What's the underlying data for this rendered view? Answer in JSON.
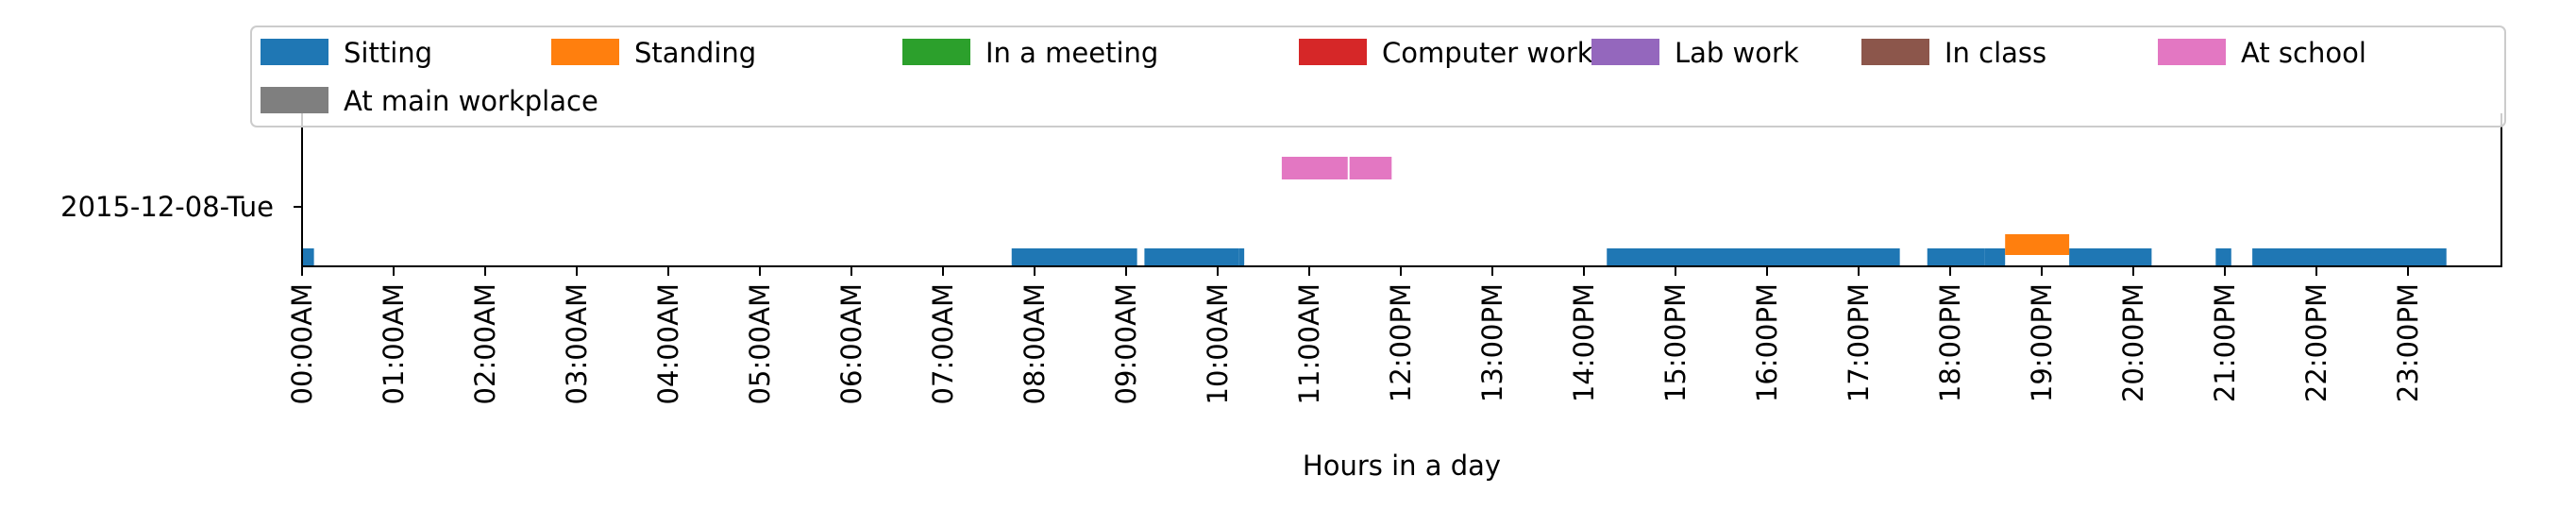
{
  "chart_data": {
    "type": "timeline",
    "title": "",
    "xlabel": "Hours in a day",
    "ylabel": "",
    "xlim": [
      0,
      24
    ],
    "row_label": "2015-12-08-Tue",
    "xticks": [
      0,
      1,
      2,
      3,
      4,
      5,
      6,
      7,
      8,
      9,
      10,
      11,
      12,
      13,
      14,
      15,
      16,
      17,
      18,
      19,
      20,
      21,
      22,
      23
    ],
    "xtick_labels": [
      "00:00AM",
      "01:00AM",
      "02:00AM",
      "03:00AM",
      "04:00AM",
      "05:00AM",
      "06:00AM",
      "07:00AM",
      "08:00AM",
      "09:00AM",
      "10:00AM",
      "11:00AM",
      "12:00PM",
      "13:00PM",
      "14:00PM",
      "15:00PM",
      "16:00PM",
      "17:00PM",
      "18:00PM",
      "19:00PM",
      "20:00PM",
      "21:00PM",
      "22:00PM",
      "23:00PM"
    ],
    "legend_position": "top",
    "series": [
      {
        "name": "Sitting",
        "color": "#1f77b4",
        "intervals": [
          [
            0.0,
            0.13
          ],
          [
            7.75,
            9.12
          ],
          [
            9.2,
            10.23
          ],
          [
            10.23,
            10.29
          ],
          [
            14.25,
            17.45
          ],
          [
            17.75,
            18.38
          ],
          [
            18.38,
            18.6
          ],
          [
            19.3,
            20.2
          ],
          [
            20.9,
            21.07
          ],
          [
            21.3,
            23.42
          ]
        ]
      },
      {
        "name": "Standing",
        "color": "#ff7f0e",
        "intervals": [
          [
            18.6,
            19.3
          ]
        ]
      },
      {
        "name": "In a meeting",
        "color": "#2ca02c",
        "intervals": []
      },
      {
        "name": "Computer work",
        "color": "#d62728",
        "intervals": []
      },
      {
        "name": "Lab work",
        "color": "#9467bd",
        "intervals": []
      },
      {
        "name": "In class",
        "color": "#8c564b",
        "intervals": []
      },
      {
        "name": "At school",
        "color": "#e377c2",
        "intervals": [
          [
            10.7,
            11.42
          ],
          [
            11.44,
            11.9
          ]
        ]
      },
      {
        "name": "At main workplace",
        "color": "#7f7f7f",
        "intervals": []
      }
    ]
  }
}
